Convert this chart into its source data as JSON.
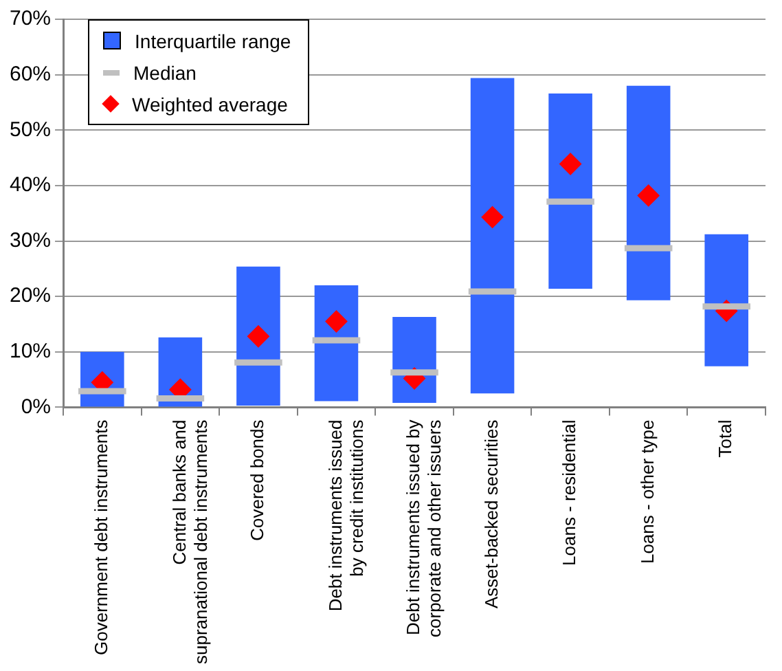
{
  "chart_data": {
    "type": "box",
    "categories": [
      "Government debt instruments",
      "Central banks and\nsupranational debt instruments",
      "Covered bonds",
      "Debt instruments issued\nby credit institutions",
      "Debt instruments issued by\ncorporate and other issuers",
      "Asset-backed securities",
      "Loans - residential",
      "Loans - other type",
      "Total"
    ],
    "series": [
      {
        "name": "Interquartile range",
        "color": "#3366ff",
        "boxes": [
          {
            "low": 0,
            "q1": 0,
            "median": 2.9,
            "q3": 10.0,
            "high": 10.0,
            "mean": 4.5
          },
          {
            "low": 0,
            "q1": 0,
            "median": 1.6,
            "q3": 12.6,
            "high": 12.6,
            "mean": 3.2
          },
          {
            "low": 0.3,
            "q1": 0.3,
            "median": 8.1,
            "q3": 25.4,
            "high": 25.4,
            "mean": 12.8
          },
          {
            "low": 1.1,
            "q1": 1.1,
            "median": 12.1,
            "q3": 22.0,
            "high": 22.0,
            "mean": 15.5
          },
          {
            "low": 0.8,
            "q1": 0.8,
            "median": 6.3,
            "q3": 16.3,
            "high": 16.3,
            "mean": 5.2
          },
          {
            "low": 2.5,
            "q1": 2.5,
            "median": 20.9,
            "q3": 59.4,
            "high": 59.4,
            "mean": 34.3
          },
          {
            "low": 21.4,
            "q1": 21.4,
            "median": 37.1,
            "q3": 56.6,
            "high": 56.6,
            "mean": 43.9
          },
          {
            "low": 19.3,
            "q1": 19.3,
            "median": 28.7,
            "q3": 58.0,
            "high": 58.0,
            "mean": 38.2
          },
          {
            "low": 7.4,
            "q1": 7.4,
            "median": 18.2,
            "q3": 31.2,
            "high": 31.2,
            "mean": 17.4
          }
        ]
      }
    ],
    "annotations": [
      "Median",
      "Weighted average"
    ],
    "ylim": [
      0,
      70
    ],
    "yticks": [
      {
        "value": 0,
        "label": "0%"
      },
      {
        "value": 10,
        "label": "10%"
      },
      {
        "value": 20,
        "label": "20%"
      },
      {
        "value": 30,
        "label": "30%"
      },
      {
        "value": 40,
        "label": "40%"
      },
      {
        "value": 50,
        "label": "50%"
      },
      {
        "value": 60,
        "label": "60%"
      },
      {
        "value": 70,
        "label": "70%"
      }
    ],
    "grid": "y",
    "legend": "top left"
  }
}
